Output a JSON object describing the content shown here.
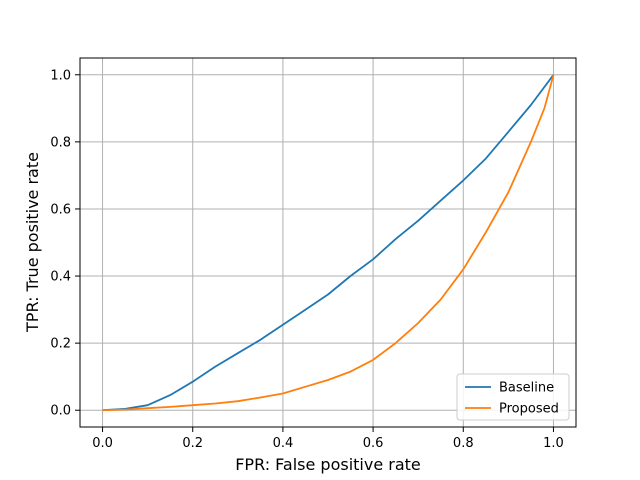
{
  "chart_data": {
    "type": "line",
    "xlabel": "FPR: False positive rate",
    "ylabel": "TPR: True positive rate",
    "xlim": [
      -0.05,
      1.05
    ],
    "ylim": [
      -0.05,
      1.05
    ],
    "x_ticks": [
      0.0,
      0.2,
      0.4,
      0.6,
      0.8,
      1.0
    ],
    "x_tick_labels": [
      "0.0",
      "0.2",
      "0.4",
      "0.6",
      "0.8",
      "1.0"
    ],
    "y_ticks": [
      0.0,
      0.2,
      0.4,
      0.6,
      0.8,
      1.0
    ],
    "y_tick_labels": [
      "0.0",
      "0.2",
      "0.4",
      "0.6",
      "0.8",
      "1.0"
    ],
    "grid": true,
    "legend_position": "lower-right",
    "series": [
      {
        "name": "Baseline",
        "color": "#1f77b4",
        "x": [
          0.0,
          0.05,
          0.1,
          0.15,
          0.2,
          0.25,
          0.3,
          0.35,
          0.4,
          0.45,
          0.5,
          0.55,
          0.6,
          0.65,
          0.7,
          0.75,
          0.8,
          0.85,
          0.9,
          0.95,
          1.0
        ],
        "y": [
          0.0,
          0.004,
          0.015,
          0.045,
          0.085,
          0.13,
          0.17,
          0.21,
          0.255,
          0.3,
          0.345,
          0.4,
          0.45,
          0.51,
          0.565,
          0.625,
          0.685,
          0.75,
          0.83,
          0.91,
          1.0
        ]
      },
      {
        "name": "Proposed",
        "color": "#ff7f0e",
        "x": [
          0.0,
          0.05,
          0.1,
          0.15,
          0.2,
          0.25,
          0.3,
          0.35,
          0.4,
          0.45,
          0.5,
          0.55,
          0.6,
          0.65,
          0.7,
          0.75,
          0.8,
          0.85,
          0.9,
          0.95,
          0.98,
          1.0
        ],
        "y": [
          0.0,
          0.002,
          0.006,
          0.01,
          0.015,
          0.02,
          0.027,
          0.038,
          0.05,
          0.07,
          0.09,
          0.115,
          0.15,
          0.2,
          0.26,
          0.33,
          0.42,
          0.53,
          0.65,
          0.8,
          0.9,
          1.0
        ]
      }
    ]
  }
}
